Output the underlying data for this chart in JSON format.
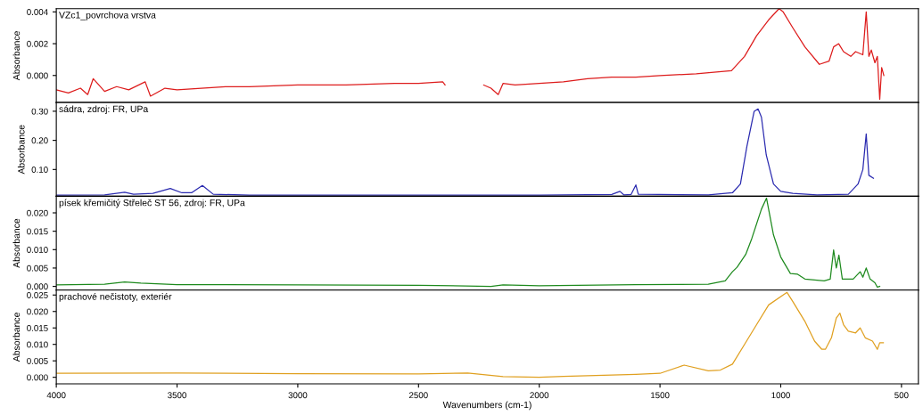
{
  "chart_data": [
    {
      "type": "line",
      "title": "VZc1_povrchova vrstva",
      "ylabel": "Absorbance",
      "xlim": [
        4000,
        430
      ],
      "ylim": [
        -0.0017,
        0.0042
      ],
      "yticks": [
        {
          "value": 0.0,
          "label": "0.000"
        },
        {
          "value": 0.002,
          "label": "0.002"
        },
        {
          "value": 0.004,
          "label": "0.004"
        }
      ],
      "tick_labels": "y",
      "grid": false,
      "legend": false,
      "series": [
        {
          "color": "#dd1c1c",
          "x": [
            4000,
            3950,
            3900,
            3870,
            3847,
            3800,
            3750,
            3700,
            3632,
            3610,
            3550,
            3500,
            3400,
            3300,
            3200,
            3000,
            2800,
            2600,
            2500,
            2400,
            2390,
            2300,
            2230,
            2200,
            2170,
            2150,
            2100,
            2000,
            1900,
            1800,
            1700,
            1600,
            1500,
            1350,
            1204,
            1150,
            1100,
            1050,
            1007,
            990,
            950,
            900,
            840,
            800,
            781,
            760,
            740,
            710,
            690,
            660,
            646,
            635,
            625,
            610,
            600,
            590,
            582,
            573
          ],
          "values": [
            -0.0009,
            -0.0011,
            -0.0008,
            -0.0012,
            -0.0002,
            -0.001,
            -0.0007,
            -0.0009,
            -0.0004,
            -0.0013,
            -0.0008,
            -0.0009,
            -0.0008,
            -0.0007,
            -0.0007,
            -0.0006,
            -0.0006,
            -0.0005,
            -0.0005,
            -0.0004,
            -0.0006,
            null,
            -0.0006,
            -0.0008,
            -0.0012,
            -0.0005,
            -0.0006,
            -0.0005,
            -0.0004,
            -0.0002,
            -0.0001,
            -0.0001,
            0.0,
            0.0001,
            0.0003,
            0.0012,
            0.0025,
            0.0035,
            0.0042,
            0.004,
            0.003,
            0.0018,
            0.0007,
            0.0009,
            0.0018,
            0.002,
            0.0015,
            0.0012,
            0.0015,
            0.0013,
            0.004,
            0.0012,
            0.0016,
            0.0008,
            0.0012,
            -0.0015,
            0.0005,
            0.0
          ]
        }
      ]
    },
    {
      "type": "line",
      "title": "sádra, zdroj: FR, UPa",
      "ylabel": "Absorbance",
      "xlim": [
        4000,
        430
      ],
      "ylim": [
        0.008,
        0.33
      ],
      "yticks": [
        {
          "value": 0.1,
          "label": "0.10"
        },
        {
          "value": 0.2,
          "label": "0.20"
        },
        {
          "value": 0.3,
          "label": "0.30"
        }
      ],
      "tick_labels": "y",
      "grid": false,
      "legend": false,
      "series": [
        {
          "color": "#2b2bb0",
          "x": [
            4000,
            3800,
            3717,
            3680,
            3600,
            3528,
            3480,
            3440,
            3395,
            3350,
            3200,
            2500,
            2000,
            1700,
            1666,
            1650,
            1620,
            1600,
            1590,
            1300,
            1200,
            1167,
            1140,
            1110,
            1094,
            1080,
            1060,
            1030,
            1000,
            950,
            850,
            720,
            680,
            660,
            646,
            635,
            616
          ],
          "values": [
            0.012,
            0.013,
            0.022,
            0.015,
            0.018,
            0.035,
            0.02,
            0.02,
            0.045,
            0.015,
            0.012,
            0.012,
            0.012,
            0.014,
            0.025,
            0.013,
            0.014,
            0.047,
            0.015,
            0.013,
            0.02,
            0.05,
            0.18,
            0.3,
            0.308,
            0.28,
            0.15,
            0.05,
            0.025,
            0.018,
            0.013,
            0.015,
            0.05,
            0.1,
            0.222,
            0.08,
            0.07
          ]
        }
      ]
    },
    {
      "type": "line",
      "title": "písek křemičitý Střeleč ST 56, zdroj: FR, UPa",
      "ylabel": "Absorbance",
      "xlim": [
        4000,
        430
      ],
      "ylim": [
        -0.001,
        0.0245
      ],
      "yticks": [
        {
          "value": 0.0,
          "label": "0.000"
        },
        {
          "value": 0.005,
          "label": "0.005"
        },
        {
          "value": 0.01,
          "label": "0.010"
        },
        {
          "value": 0.015,
          "label": "0.015"
        },
        {
          "value": 0.02,
          "label": "0.020"
        }
      ],
      "tick_labels": "y",
      "grid": false,
      "legend": false,
      "series": [
        {
          "color": "#1e8a1e",
          "x": [
            4000,
            3800,
            3717,
            3650,
            3500,
            3000,
            2500,
            2200,
            2150,
            2000,
            1600,
            1300,
            1230,
            1200,
            1181,
            1145,
            1120,
            1080,
            1059,
            1030,
            1000,
            960,
            930,
            900,
            820,
            795,
            781,
            770,
            759,
            745,
            700,
            671,
            660,
            646,
            630,
            610,
            600,
            590
          ],
          "values": [
            0.0004,
            0.0006,
            0.0012,
            0.0009,
            0.0005,
            0.0004,
            0.0003,
            0.0,
            0.0004,
            0.0002,
            0.0005,
            0.0006,
            0.0015,
            0.004,
            0.0052,
            0.0087,
            0.013,
            0.021,
            0.024,
            0.014,
            0.008,
            0.0035,
            0.0033,
            0.002,
            0.0015,
            0.002,
            0.0099,
            0.005,
            0.0085,
            0.002,
            0.002,
            0.004,
            0.0025,
            0.005,
            0.002,
            0.001,
            -0.0002,
            0.0
          ]
        }
      ]
    },
    {
      "type": "line",
      "title": "prachové nečistoty, exteriér",
      "ylabel": "Absorbance",
      "xlabel": "Wavenumbers (cm-1)",
      "xlim": [
        4000,
        430
      ],
      "ylim": [
        -0.002,
        0.0265
      ],
      "xticks": [
        4000,
        3500,
        3000,
        2500,
        2000,
        1500,
        1000,
        500
      ],
      "yticks": [
        {
          "value": 0.0,
          "label": "0.000"
        },
        {
          "value": 0.005,
          "label": "0.005"
        },
        {
          "value": 0.01,
          "label": "0.010"
        },
        {
          "value": 0.015,
          "label": "0.015"
        },
        {
          "value": 0.02,
          "label": "0.020"
        },
        {
          "value": 0.025,
          "label": "0.025"
        }
      ],
      "grid": false,
      "legend": false,
      "series": [
        {
          "color": "#e0a020",
          "x": [
            4000,
            3500,
            3000,
            2500,
            2296,
            2150,
            2000,
            1900,
            1600,
            1500,
            1400,
            1300,
            1250,
            1200,
            1150,
            1100,
            1050,
            974,
            950,
            900,
            860,
            830,
            815,
            790,
            770,
            755,
            740,
            720,
            690,
            671,
            650,
            620,
            600,
            590,
            575
          ],
          "values": [
            0.0012,
            0.0013,
            0.0011,
            0.001,
            0.0013,
            0.0002,
            0.0,
            0.0003,
            0.0009,
            0.0012,
            0.0037,
            0.002,
            0.0022,
            0.004,
            0.01,
            0.016,
            0.022,
            0.0258,
            0.023,
            0.017,
            0.011,
            0.0085,
            0.0085,
            0.012,
            0.018,
            0.0195,
            0.016,
            0.014,
            0.0135,
            0.015,
            0.012,
            0.011,
            0.0085,
            0.0105,
            0.0105
          ]
        }
      ]
    }
  ]
}
